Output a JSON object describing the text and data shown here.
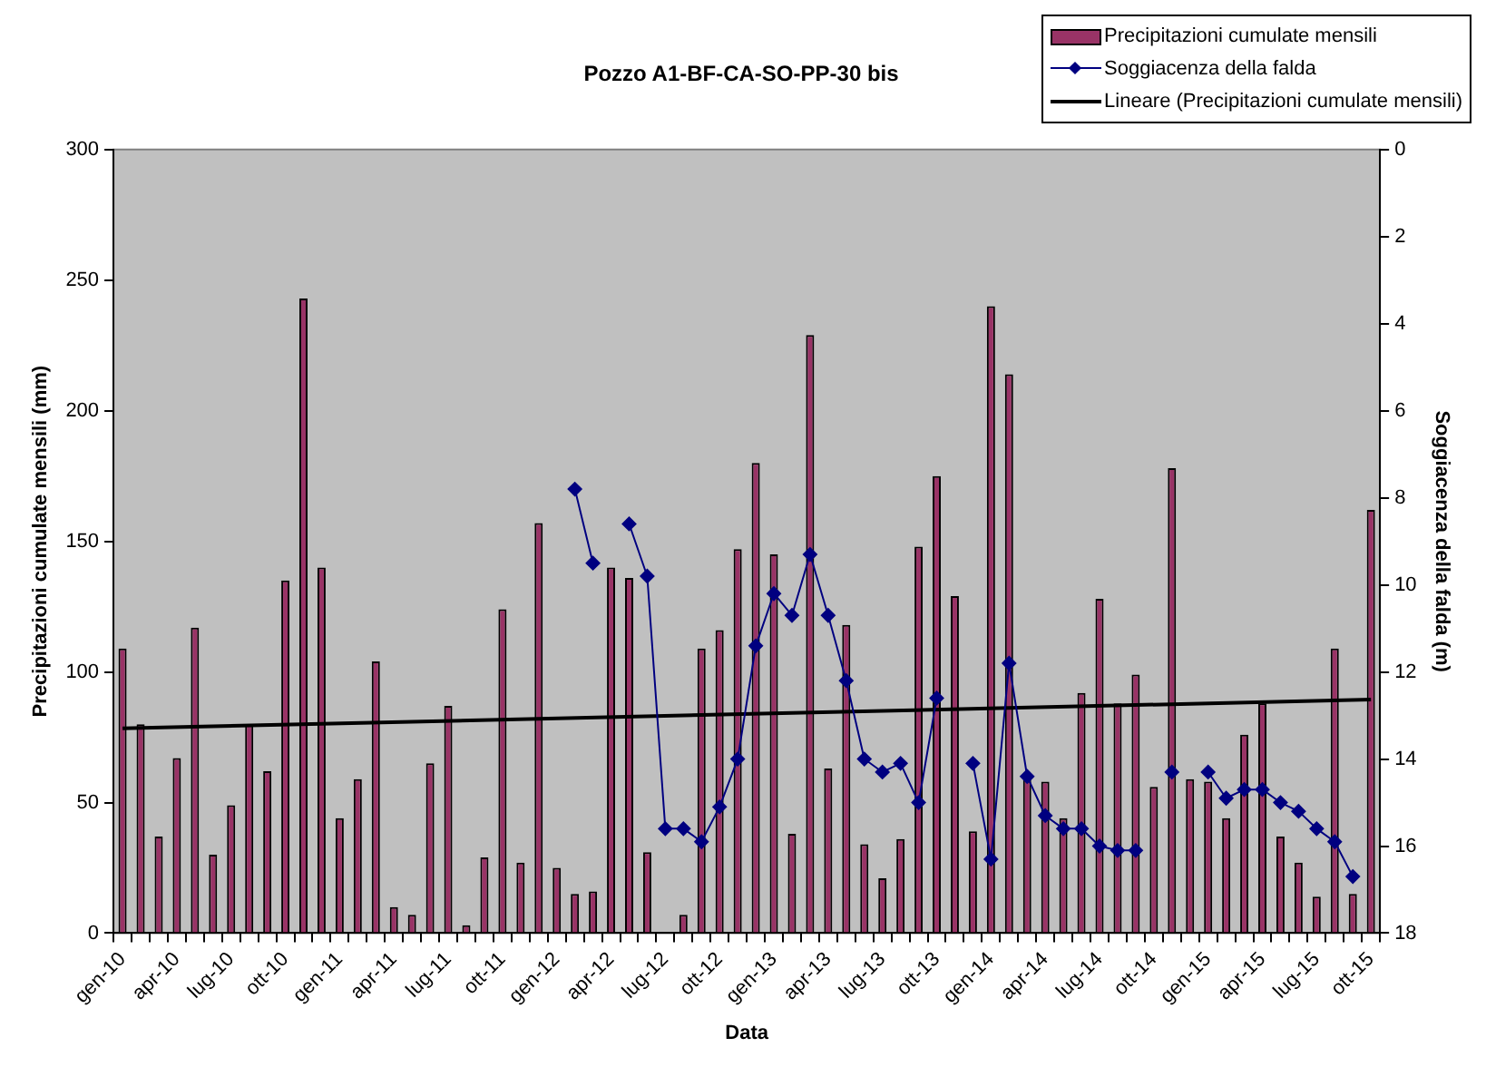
{
  "chart_data": {
    "type": "bar",
    "title": "Pozzo A1-BF-CA-SO-PP-30 bis",
    "xlabel": "Data",
    "ylabel": "Precipitazioni cumulate mensili (mm)",
    "y2label": "Soggiacenza della falda (m)",
    "categories": [
      "gen-10",
      null,
      null,
      "apr-10",
      null,
      null,
      "lug-10",
      null,
      null,
      "ott-10",
      null,
      null,
      "gen-11",
      null,
      null,
      "apr-11",
      null,
      null,
      "lug-11",
      null,
      null,
      "ott-11",
      null,
      null,
      "gen-12",
      null,
      null,
      "apr-12",
      null,
      null,
      "lug-12",
      null,
      null,
      "ott-12",
      null,
      null,
      "gen-13",
      null,
      null,
      "apr-13",
      null,
      null,
      "lug-13",
      null,
      null,
      "ott-13",
      null,
      null,
      "gen-14",
      null,
      null,
      "apr-14",
      null,
      null,
      "lug-14",
      null,
      null,
      "ott-14",
      null,
      null,
      "gen-15",
      null,
      null,
      "apr-15",
      null,
      null,
      "lug-15",
      null,
      null,
      "ott-15"
    ],
    "series": [
      {
        "name": "Precipitazioni cumulate mensili",
        "color": "#993366",
        "values": [
          109,
          80,
          37,
          67,
          117,
          30,
          49,
          80,
          62,
          135,
          243,
          140,
          44,
          59,
          104,
          10,
          7,
          65,
          87,
          3,
          29,
          124,
          27,
          157,
          25,
          15,
          16,
          140,
          136,
          31,
          null,
          7,
          109,
          116,
          147,
          180,
          145,
          38,
          229,
          63,
          118,
          34,
          21,
          36,
          148,
          175,
          129,
          39,
          240,
          214,
          59,
          58,
          44,
          92,
          128,
          88,
          99,
          56,
          178,
          59,
          58,
          44,
          76,
          88,
          37,
          27,
          14,
          109,
          15,
          162
        ]
      },
      {
        "name": "Soggiacenza della falda",
        "type": "line",
        "axis": "y2",
        "color": "#000080",
        "marker": "diamond",
        "values": [
          null,
          null,
          null,
          null,
          null,
          null,
          null,
          null,
          null,
          null,
          null,
          null,
          null,
          null,
          null,
          null,
          null,
          null,
          null,
          null,
          null,
          null,
          null,
          null,
          null,
          7.8,
          9.5,
          null,
          8.6,
          9.8,
          15.6,
          15.6,
          15.9,
          15.1,
          14.0,
          11.4,
          10.2,
          10.7,
          9.3,
          10.7,
          12.2,
          14.0,
          14.3,
          14.1,
          15.0,
          12.6,
          null,
          14.1,
          16.3,
          11.8,
          14.4,
          15.3,
          15.6,
          15.6,
          16.0,
          16.1,
          16.1,
          null,
          14.3,
          null,
          14.3,
          14.9,
          14.7,
          14.7,
          15.0,
          15.2,
          15.6,
          15.9,
          16.7,
          null
        ]
      },
      {
        "name": "Lineare (Precipitazioni cumulate mensili)",
        "type": "line",
        "color": "#000000",
        "marker": "none",
        "x": [
          "gen-10",
          "ott-15"
        ],
        "values": [
          78.4,
          89.4
        ]
      }
    ],
    "ylim": [
      0,
      300
    ],
    "yticks": [
      0,
      50,
      100,
      150,
      200,
      250,
      300
    ],
    "y2lim": [
      18,
      0
    ],
    "y2ticks": [
      0,
      2,
      4,
      6,
      8,
      10,
      12,
      14,
      16,
      18
    ],
    "grid": false,
    "legend": "top right"
  }
}
